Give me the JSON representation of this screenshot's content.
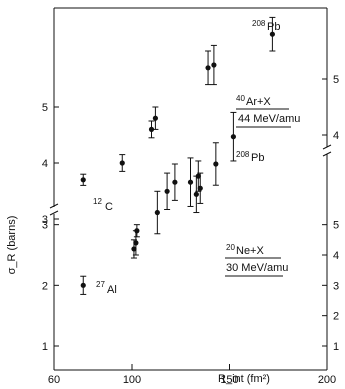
{
  "chart_data": {
    "type": "scatter",
    "title": "",
    "xlabel": "R_int (fm²)",
    "ylabel": "σ_R (barns)",
    "xlim": [
      60,
      200
    ],
    "x_ticks": [
      "60",
      "100",
      "150",
      "200"
    ],
    "y_ticks_lower_left": [
      "1",
      "2",
      "3"
    ],
    "y_ticks_upper_left": [
      "3",
      "4",
      "5"
    ],
    "y_ticks_lower_right": [
      "1",
      "2",
      "3",
      "4",
      "5"
    ],
    "y_ticks_upper_right": [
      "4",
      "5"
    ],
    "grid": false,
    "series": [
      {
        "name": "40Ar+X 44 MeV/amu",
        "axis": "upper",
        "points": [
          {
            "x": 75,
            "y": 3.7,
            "err": 0.1
          },
          {
            "x": 95,
            "y": 4.0,
            "err": 0.15
          },
          {
            "x": 110,
            "y": 4.6,
            "err": 0.15
          },
          {
            "x": 112,
            "y": 4.8,
            "err": 0.2
          },
          {
            "x": 139,
            "y": 5.7,
            "err": 0.3
          },
          {
            "x": 142,
            "y": 5.75,
            "err": 0.35
          },
          {
            "x": 172,
            "y": 6.3,
            "err": 0.3
          }
        ]
      },
      {
        "name": "20Ne+X 30 MeV/amu",
        "axis": "lower",
        "points": [
          {
            "x": 75,
            "y": 2.0,
            "err": 0.15
          },
          {
            "x": 101,
            "y": 2.6,
            "err": 0.15
          },
          {
            "x": 102,
            "y": 2.7,
            "err": 0.2
          },
          {
            "x": 102.5,
            "y": 2.9,
            "err": 0.1
          },
          {
            "x": 113,
            "y": 3.2,
            "err": 0.35
          },
          {
            "x": 118,
            "y": 3.55,
            "err": 0.3
          },
          {
            "x": 122,
            "y": 3.7,
            "err": 0.3
          },
          {
            "x": 130,
            "y": 3.7,
            "err": 0.4
          },
          {
            "x": 133,
            "y": 3.5,
            "err": 0.3
          },
          {
            "x": 134,
            "y": 3.8,
            "err": 0.25
          },
          {
            "x": 135,
            "y": 3.6,
            "err": 0.25
          },
          {
            "x": 143,
            "y": 4.0,
            "err": 0.35
          },
          {
            "x": 152,
            "y": 4.45,
            "err": 0.4
          }
        ]
      }
    ],
    "annotations": {
      "ar_label": {
        "sup": "40",
        "main": "Ar+X"
      },
      "ar_energy": "44 MeV/amu",
      "ne_label": {
        "sup": "20",
        "main": "Ne+X"
      },
      "ne_energy": "30 MeV/amu",
      "pb_upper": {
        "sup": "208",
        "main": "Pb"
      },
      "pb_lower": {
        "sup": "208",
        "main": "Pb"
      },
      "c12": {
        "sup": "12",
        "main": "C"
      },
      "al27": {
        "sup": "27",
        "main": "Al"
      }
    }
  }
}
